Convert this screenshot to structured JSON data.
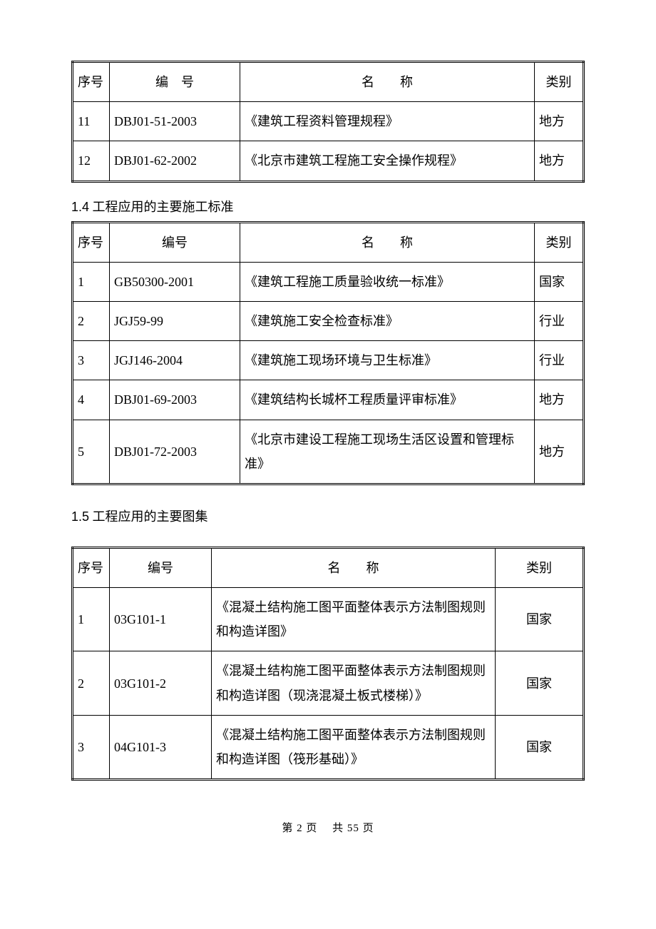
{
  "table1": {
    "headers": {
      "seq": "序号",
      "code": "编　号",
      "name": "名　　称",
      "cat": "类别"
    },
    "rows": [
      {
        "seq": "11",
        "code": "DBJ01-51-2003",
        "name": "《建筑工程资料管理规程》",
        "cat": "地方"
      },
      {
        "seq": "12",
        "code": "DBJ01-62-2002",
        "name": "《北京市建筑工程施工安全操作规程》",
        "cat": "地方"
      }
    ]
  },
  "section2": {
    "num": "1.4",
    "title": "工程应用的主要施工标准"
  },
  "table2": {
    "headers": {
      "seq": "序号",
      "code": "编号",
      "name": "名　　称",
      "cat": "类别"
    },
    "rows": [
      {
        "seq": "1",
        "code": "GB50300-2001",
        "name": "《建筑工程施工质量验收统一标准》",
        "cat": "国家"
      },
      {
        "seq": "2",
        "code": "JGJ59-99",
        "name": "《建筑施工安全检查标准》",
        "cat": "行业"
      },
      {
        "seq": "3",
        "code": "JGJ146-2004",
        "name": "《建筑施工现场环境与卫生标准》",
        "cat": "行业"
      },
      {
        "seq": "4",
        "code": "DBJ01-69-2003",
        "name": "《建筑结构长城杯工程质量评审标准》",
        "cat": "地方"
      },
      {
        "seq": "5",
        "code": "DBJ01-72-2003",
        "name": "《北京市建设工程施工现场生活区设置和管理标准》",
        "cat": "地方"
      }
    ]
  },
  "section3": {
    "num": "1.5",
    "title": "工程应用的主要图集"
  },
  "table3": {
    "headers": {
      "seq": "序号",
      "code": "编号",
      "name": "名　　称",
      "cat": "类别"
    },
    "rows": [
      {
        "seq": "1",
        "code": "03G101-1",
        "name": "《混凝土结构施工图平面整体表示方法制图规则和构造详图》",
        "cat": "国家"
      },
      {
        "seq": "2",
        "code": "03G101-2",
        "name": "《混凝土结构施工图平面整体表示方法制图规则和构造详图（现浇混凝土板式楼梯）》",
        "cat": "国家"
      },
      {
        "seq": "3",
        "code": "04G101-3",
        "name": "《混凝土结构施工图平面整体表示方法制图规则和构造详图（筏形基础）》",
        "cat": "国家"
      }
    ]
  },
  "footer": {
    "text": "第 2 页　 共 55 页"
  }
}
